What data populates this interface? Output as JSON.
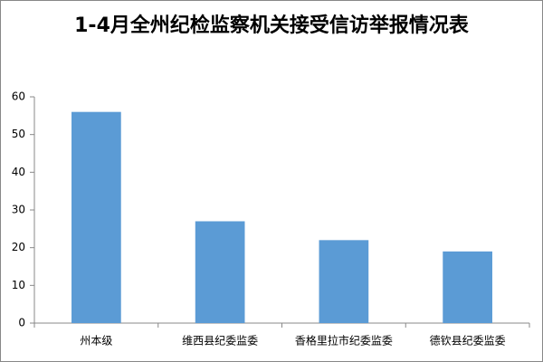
{
  "chart_data": {
    "type": "bar",
    "title": "1-4月全州纪检监察机关接受信访举报情况表",
    "categories": [
      "州本级",
      "维西县纪委监委",
      "香格里拉市纪委监委",
      "德钦县纪委监委"
    ],
    "values": [
      56,
      27,
      22,
      19
    ],
    "color": "#5b9bd5",
    "ylim": [
      0,
      60
    ],
    "yticks": [
      0,
      10,
      20,
      30,
      40,
      50,
      60
    ],
    "grid": false
  }
}
